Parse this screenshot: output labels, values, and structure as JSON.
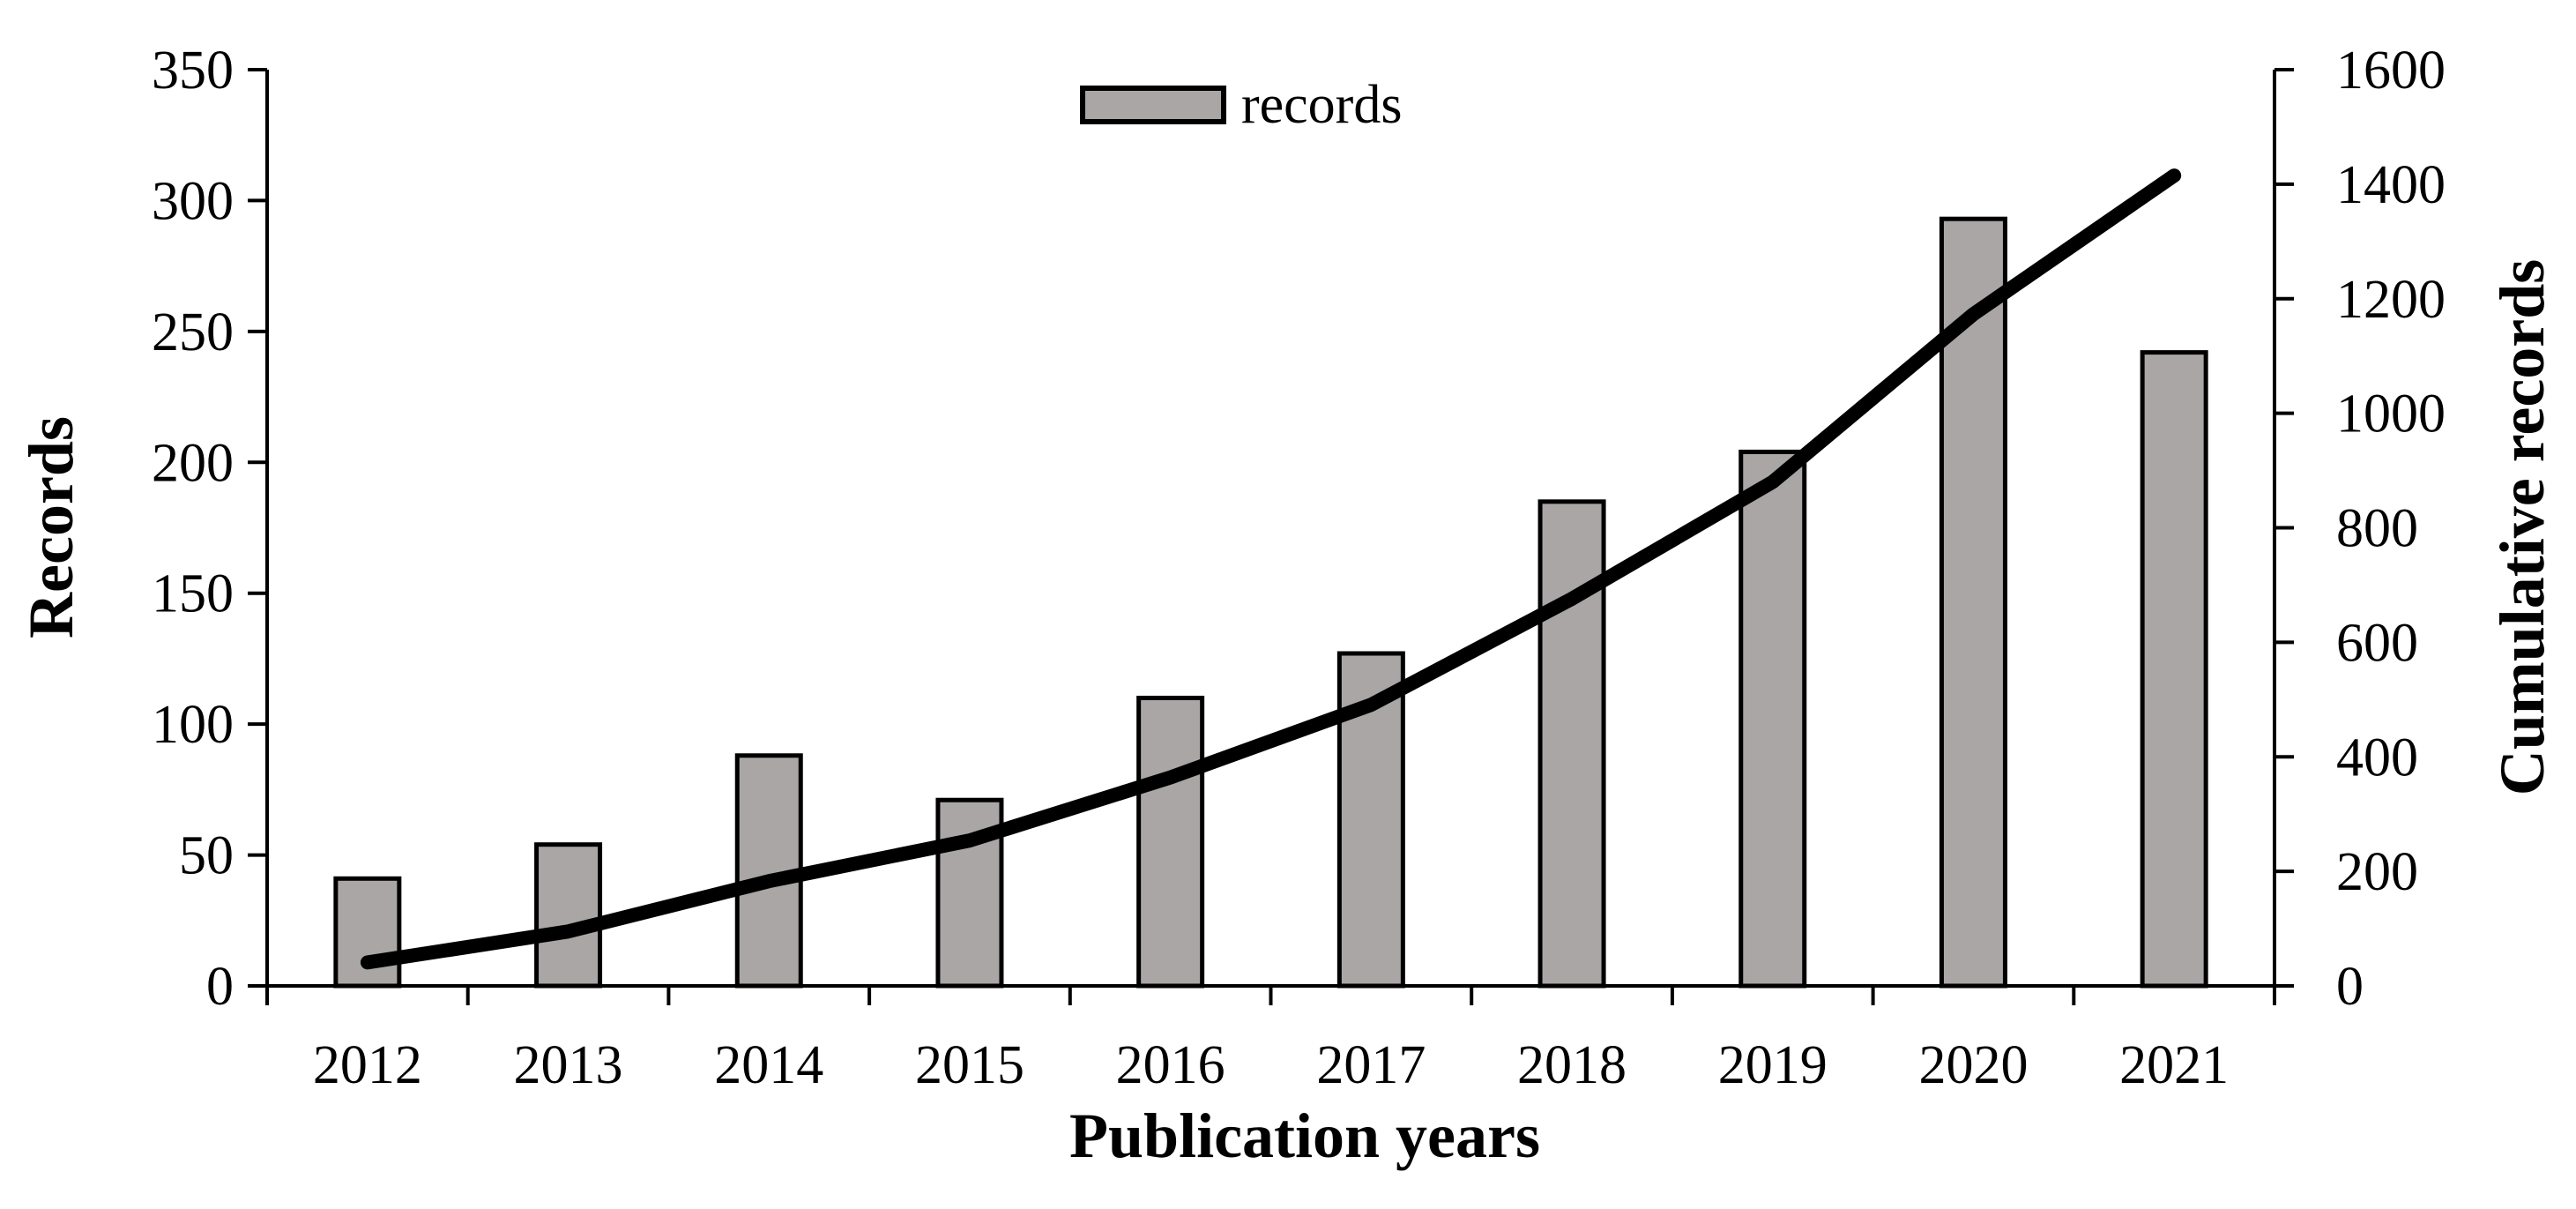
{
  "chart_data": {
    "type": "bar",
    "title": "",
    "xlabel": "Publication years",
    "ylabel": "Records",
    "y2label": "Cumulative records",
    "categories": [
      "2012",
      "2013",
      "2014",
      "2015",
      "2016",
      "2017",
      "2018",
      "2019",
      "2020",
      "2021"
    ],
    "series": [
      {
        "name": "records",
        "type": "bar",
        "axis": "left",
        "values": [
          41,
          54,
          88,
          71,
          110,
          127,
          185,
          204,
          293,
          242
        ],
        "color": "#aaa6a6"
      },
      {
        "type": "line",
        "axis": "right",
        "values": [
          41,
          95,
          183,
          254,
          364,
          491,
          676,
          880,
          1173,
          1415
        ],
        "color": "#000000"
      }
    ],
    "ylim": [
      0,
      350
    ],
    "yticks": [
      "0",
      "50",
      "100",
      "150",
      "200",
      "250",
      "300",
      "350"
    ],
    "y2lim": [
      0,
      1600
    ],
    "y2ticks": [
      "0",
      "200",
      "400",
      "600",
      "800",
      "1000",
      "1200",
      "1400",
      "1600"
    ],
    "grid": false,
    "legend": "top-center"
  }
}
